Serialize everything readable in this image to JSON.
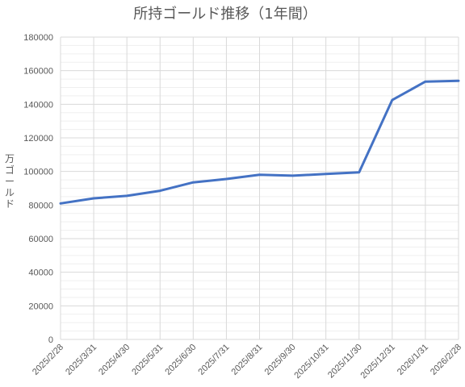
{
  "chart_data": {
    "type": "line",
    "title": "所持ゴールド推移（1年間）",
    "xlabel": "",
    "ylabel": "万ゴールド",
    "categories": [
      "2025/2/28",
      "2025/3/31",
      "2025/4/30",
      "2025/5/31",
      "2025/6/30",
      "2025/7/31",
      "2025/8/31",
      "2025/9/30",
      "2025/10/31",
      "2025/11/30",
      "2025/12/31",
      "2026/1/31",
      "2026/2/28"
    ],
    "series": [
      {
        "name": "",
        "values": [
          81000,
          84000,
          85500,
          88500,
          93500,
          95500,
          98000,
          97500,
          98500,
          99500,
          142500,
          153500,
          154000
        ]
      }
    ],
    "ylim": [
      0,
      180000
    ],
    "yticks": [
      0,
      20000,
      40000,
      60000,
      80000,
      100000,
      120000,
      140000,
      160000,
      180000
    ],
    "grid": true,
    "minor_grid": true,
    "legend": "none",
    "line_color": "#4472c4",
    "grid_color": "#d9d9d9",
    "minor_grid_color": "#efefef"
  }
}
